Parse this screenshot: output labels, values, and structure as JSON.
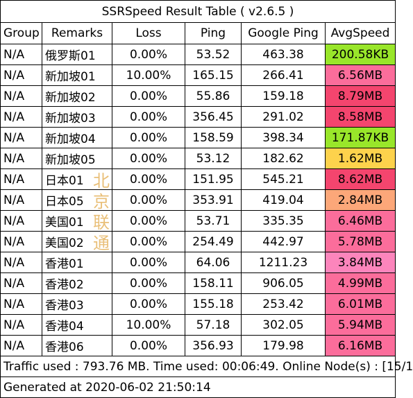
{
  "title": "SSRSpeed Result Table ( v2.6.5 )",
  "headers": [
    "Group",
    "Remarks",
    "Loss",
    "Ping",
    "Google Ping",
    "AvgSpeed"
  ],
  "rows": [
    {
      "group": "N/A",
      "remarks": "俄罗斯01",
      "loss": "0.00%",
      "ping": "53.52",
      "gping": "463.38",
      "speed": "200.58KB",
      "color": "#99e62a"
    },
    {
      "group": "N/A",
      "remarks": "新加坡01",
      "loss": "10.00%",
      "ping": "165.15",
      "gping": "266.41",
      "speed": "6.56MB",
      "color": "#fb6d9b"
    },
    {
      "group": "N/A",
      "remarks": "新加坡02",
      "loss": "0.00%",
      "ping": "55.86",
      "gping": "159.18",
      "speed": "8.79MB",
      "color": "#f4456e"
    },
    {
      "group": "N/A",
      "remarks": "新加坡03",
      "loss": "0.00%",
      "ping": "356.45",
      "gping": "291.02",
      "speed": "8.58MB",
      "color": "#f4456e"
    },
    {
      "group": "N/A",
      "remarks": "新加坡04",
      "loss": "0.00%",
      "ping": "158.59",
      "gping": "398.34",
      "speed": "171.87KB",
      "color": "#99e62a"
    },
    {
      "group": "N/A",
      "remarks": "新加坡05",
      "loss": "0.00%",
      "ping": "53.12",
      "gping": "182.62",
      "speed": "1.62MB",
      "color": "#fdd24c"
    },
    {
      "group": "N/A",
      "remarks": "日本01",
      "loss": "0.00%",
      "ping": "151.95",
      "gping": "545.21",
      "speed": "8.62MB",
      "color": "#f4456e"
    },
    {
      "group": "N/A",
      "remarks": "日本05",
      "loss": "0.00%",
      "ping": "353.91",
      "gping": "419.04",
      "speed": "2.84MB",
      "color": "#fca779"
    },
    {
      "group": "N/A",
      "remarks": "美国01",
      "loss": "0.00%",
      "ping": "53.71",
      "gping": "335.35",
      "speed": "6.46MB",
      "color": "#fb6d9b"
    },
    {
      "group": "N/A",
      "remarks": "美国02",
      "loss": "0.00%",
      "ping": "254.49",
      "gping": "442.97",
      "speed": "5.78MB",
      "color": "#fb6d9b"
    },
    {
      "group": "N/A",
      "remarks": "香港01",
      "loss": "0.00%",
      "ping": "64.06",
      "gping": "1211.23",
      "speed": "3.84MB",
      "color": "#fc85bc"
    },
    {
      "group": "N/A",
      "remarks": "香港02",
      "loss": "0.00%",
      "ping": "158.11",
      "gping": "906.05",
      "speed": "4.99MB",
      "color": "#fb6d9b"
    },
    {
      "group": "N/A",
      "remarks": "香港03",
      "loss": "0.00%",
      "ping": "155.18",
      "gping": "253.42",
      "speed": "6.01MB",
      "color": "#fb6d9b"
    },
    {
      "group": "N/A",
      "remarks": "香港04",
      "loss": "10.00%",
      "ping": "57.18",
      "gping": "302.05",
      "speed": "5.94MB",
      "color": "#fb6d9b"
    },
    {
      "group": "N/A",
      "remarks": "香港06",
      "loss": "0.00%",
      "ping": "356.93",
      "gping": "179.98",
      "speed": "6.16MB",
      "color": "#fb6d9b"
    }
  ],
  "footer": {
    "traffic": "Traffic used : 793.76 MB. Time used: 00:06:49. Online Node(s) : [15/1",
    "generated": "Generated at 2020-06-02 21:50:14"
  },
  "watermark": [
    "北",
    "京",
    "联",
    "通"
  ]
}
